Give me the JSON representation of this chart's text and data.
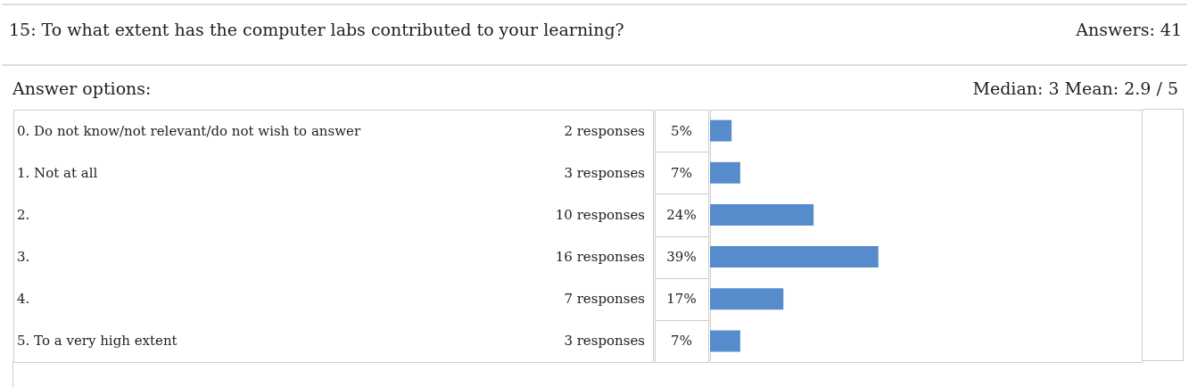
{
  "chart_data": {
    "type": "bar",
    "orientation": "horizontal",
    "title": "15:  To what extent has the computer labs contributed to your learning?",
    "subtitle": "Answers:  41",
    "categories": [
      "0.  Do not know/not relevant/do not wish to answer",
      "1.  Not at all",
      "2.",
      "3.",
      "4.",
      "5.  To a very high extent"
    ],
    "values": [
      5,
      7,
      24,
      39,
      17,
      7
    ],
    "value_labels": [
      "5%",
      "7%",
      "24%",
      "39%",
      "17%",
      "7%"
    ],
    "color": "#568ccb",
    "xlim": [
      0,
      100
    ],
    "tick_labels": false,
    "annotations": [
      "2 responses",
      "3 responses",
      "10 responses",
      "16 responses",
      "7 responses",
      "3 responses",
      "Answer options:",
      "Median: 3 Mean: 2.9 / 5"
    ]
  }
}
